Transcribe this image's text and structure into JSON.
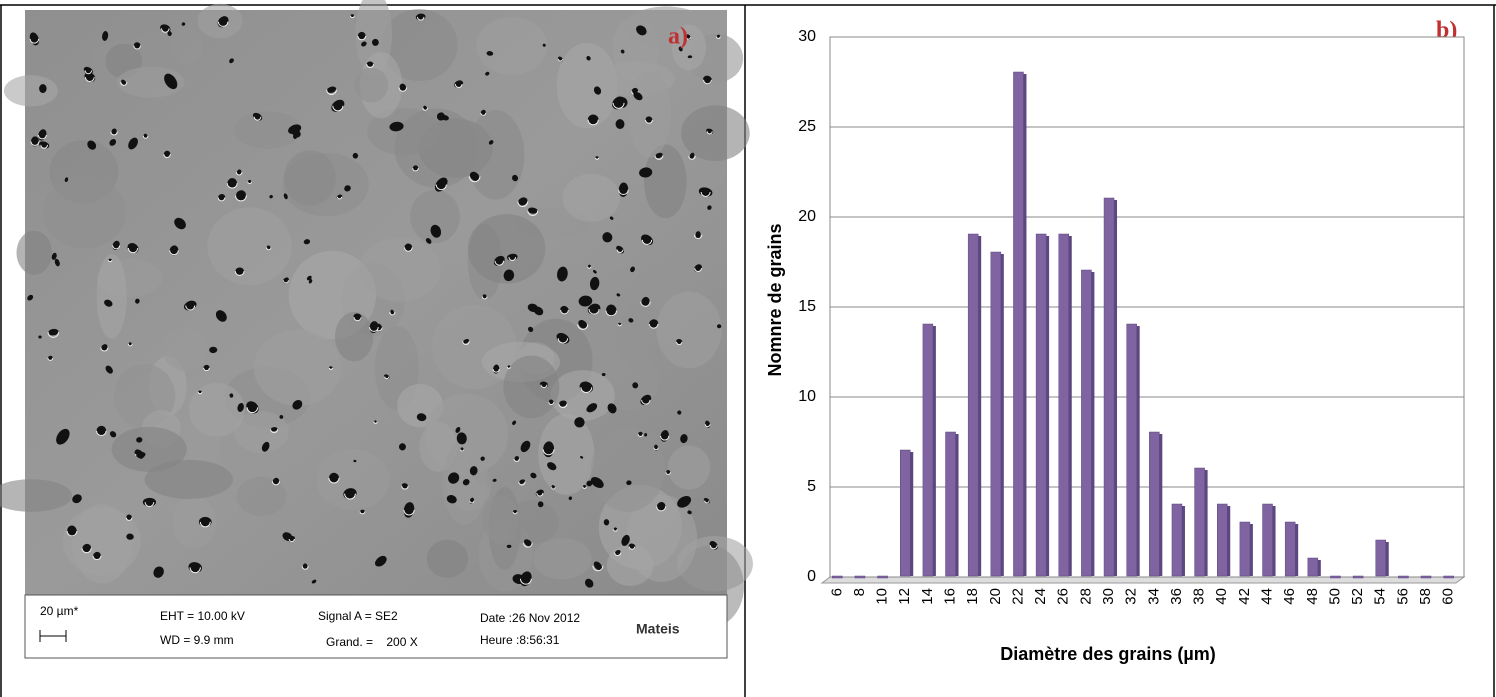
{
  "sem_image": {
    "panel_label": "a)",
    "scale": "20 µm*",
    "eht": "EHT = 10.00 kV",
    "wd": "WD =  9.9 mm",
    "signal": "Signal A = SE2",
    "grand": "Grand. =    200 X",
    "date": "Date :26 Nov 2012",
    "heure": "Heure :8:56:31",
    "logo": "Mateis"
  },
  "chart_data": {
    "type": "bar",
    "panel_label": "b)",
    "x_label": "Diamètre des grains (µm)",
    "y_label": "Nomnre de grains",
    "categories": [
      "6",
      "8",
      "10",
      "12",
      "14",
      "16",
      "18",
      "20",
      "22",
      "24",
      "26",
      "28",
      "30",
      "32",
      "34",
      "36",
      "38",
      "40",
      "42",
      "44",
      "46",
      "48",
      "50",
      "52",
      "54",
      "56",
      "58",
      "60"
    ],
    "values": [
      0,
      0,
      0,
      7,
      14,
      8,
      19,
      18,
      28,
      19,
      19,
      17,
      21,
      14,
      8,
      4,
      6,
      4,
      3,
      4,
      3,
      1,
      0,
      0,
      2,
      0,
      0,
      0
    ],
    "color": "#8064a2",
    "ylim": [
      0,
      30
    ],
    "yticks": [
      0,
      5,
      10,
      15,
      20,
      25,
      30
    ],
    "grid": true
  }
}
